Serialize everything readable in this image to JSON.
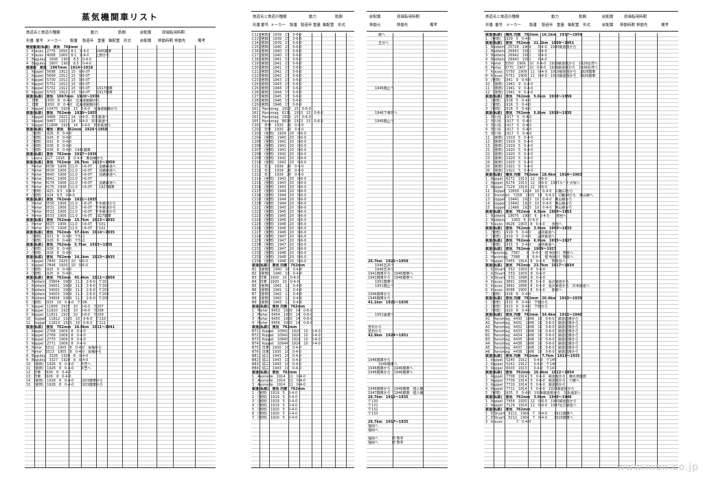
{
  "page_title": "蒸気機関車リスト",
  "sheet1_header": {
    "row1": [
      "鉄道名と鉄道の種類",
      "動力",
      "軌間",
      "前配属",
      "原価転用時期"
    ],
    "row2": [
      "形番",
      "番号",
      "メーカー",
      "製番",
      "製造年",
      "重量",
      "軸配置",
      "形式",
      "前配属",
      "移動時期",
      "移動先",
      "備考"
    ]
  },
  "sheet1_rows": [
    {
      "sec": true,
      "t": "軽便鉄道(私鉄)　蒸気　762mm"
    },
    {
      "t": "1　Krauss　2776　1893　8.1　0-4-0　　1945廃車"
    },
    {
      "t": "2　Krauss　4068　1900　8.1　0-4-0　　上野から"
    },
    {
      "t": "3　Baguley　1606　1903　8.5　0-4-0　　"
    },
    {
      "t": "4　Baguley　1607　1903　8.5　0-4-0　　"
    },
    {
      "sec": true,
      "t": "鉄道院　蒸気　1067mm　1914～1918"
    },
    {
      "t": "1　Koppel　5698　1912　15　0-6-0T　　"
    },
    {
      "t": "2　Koppel　5699　1912　15　0-6-0T　　"
    },
    {
      "t": "3　Koppel　5700　1912　15　0-6-0T　　"
    },
    {
      "t": "4　Koppel　5701　1912　15　0-6-0T　　"
    },
    {
      "t": "5　Koppel　5702　1912　15　0-6-0T　　1917廃車"
    },
    {
      "t": "6　Koppel　5703　1912　15　0-6-0T　　1917廃車"
    },
    {
      "sec": true,
      "t": "鉄道(私鉄)　蒸気　1067mm　1920～1978"
    },
    {
      "t": "1　日車　　1930　8　0-4-0　北海道製鋼から"
    },
    {
      "t": "2　日車　　1930　8　0-4-0　北海道製鋼から"
    },
    {
      "t": "3　Koppel　10470　1924　13　0-6-0　北海道製鋼から"
    },
    {
      "sec": true,
      "t": "鉄道(私鉄)　蒸気　762mm　1920～1955"
    },
    {
      "t": "1　Koppel　9466　1921　14　0-4-0　日本鉄道へ"
    },
    {
      "t": "2　Koppel　9467　1921　14　0-4-0　日本鉄道へ"
    },
    {
      "t": "3　Koppel　11808　1925　14　0-4-0　日本鉄道へ"
    },
    {
      "sec": true,
      "t": "鉄道(私鉄)　電気・蒸気　762mm　1926～1958"
    },
    {
      "t": "1　(宮田)　1926　8　0-4-0"
    },
    {
      "t": "2　(宮田)　1926　8　0-4-0"
    },
    {
      "t": "3　(宮田)　1932　8　0-4-0"
    },
    {
      "t": "4　(宮田)　1936　8　0-4-0"
    },
    {
      "t": "5　(宮田)　1936　8　0-4-0　1941廃車"
    },
    {
      "sec": true,
      "t": "鉄道(私鉄)　蒸気　762mm　1917～1936"
    },
    {
      "t": "1　Lowca　227　1916　8　0-4-0　奥谷線から"
    },
    {
      "sec": true,
      "t": "鉄道(私鉄)　蒸気　762mm　28.7km　1913～1959"
    },
    {
      "t": "1　Porter　3638　1906　11.0　0-6-0T　　淡路鉄道へ"
    },
    {
      "t": "2　Porter　3639　1906　11.0　0-6-0T　　淡路鉄道へ"
    },
    {
      "t": "3　Porter　3640　1906　11.0　0-6-0T　　淡路鉄道へ"
    },
    {
      "t": "4　Porter　3641　1906　11.0　0-6-0T　　"
    },
    {
      "t": "5　Porter　4174　1908　11.0　0-6-0T　　淡路鉄道へ"
    },
    {
      "t": "6　Porter　4175　1908　11.0　0-6-0T　　1927廃車"
    },
    {
      "t": "7　(宮田)　1923　9.5　0-4-0"
    },
    {
      "t": "8　(宮田)　1924　9.5　0-4-0"
    },
    {
      "sec": true,
      "t": "鉄道(私鉄)　蒸気　762mm　1921～1935"
    },
    {
      "t": "1　Porter　3530　1906　11.0　0-6-0T　千手鉄道から"
    },
    {
      "t": "2　Porter　3531　1906　11.0　0-6-0T　千手鉄道から"
    },
    {
      "t": "3　Porter　3532　1906　11.0　0-6-0T　千手鉄道から"
    },
    {
      "t": "4　Porter　3533　1906　11.0　0-6-0T　1927廃車"
    },
    {
      "sec": true,
      "t": "鉄道(私鉄)　蒸気　762mm　15.7km　1913～1935"
    },
    {
      "t": "1　Porter　3637　1906　11.0　0-6-0T　ケ101"
    },
    {
      "t": "2　Porter　4171　1908　11.0　0-6-0T　ケ102"
    },
    {
      "sec": true,
      "t": "鉄道(私鉄)　蒸気　762mm　37.6km　1914～1935"
    },
    {
      "t": "1　(宮田)　1921　8　0-4-0　ケ511"
    },
    {
      "t": "2　(宮田)　1926　8　0-4-0　ケ512"
    },
    {
      "sec": true,
      "t": "鉄道(私鉄)　蒸気　762mm　5.7km　1913～1935"
    },
    {
      "t": "1　(宮田)　1928　8　0-4-0"
    },
    {
      "t": "2　(宮田)　1928　8　0-4-0"
    },
    {
      "sec": true,
      "t": "鉄道(私鉄)　蒸気　762mm　14.1km　1923～1935"
    },
    {
      "t": "1　Koppel　7845　1920　10　0-6-0"
    },
    {
      "t": "2　Koppel　7846　1920　10　0-6-0"
    },
    {
      "t": "3　(宮田)　1925　9　0-4-0"
    },
    {
      "t": "4　(宮田)　1925　9　0-4-0"
    },
    {
      "sec": true,
      "t": "鉄道(私鉄)　蒸気　762mm　45.4km　1911～1959"
    },
    {
      "t": "1　Baldwin　33804　1909　11.2　2-6-0　ケ201"
    },
    {
      "t": "2　Baldwin　34001　1909　11.2　2-6-0　ケ202"
    },
    {
      "t": "3　Baldwin　34002　1909　11.2　2-6-0　ケ203"
    },
    {
      "t": "4　Baldwin　34003　1909　11.2　2-6-0　ケ204"
    },
    {
      "t": "5　Baldwin　34004　1909　11.2　2-6-0　ケ205"
    },
    {
      "t": "6　(宮田)　1925　10　0-4-0　ケ206"
    },
    {
      "t": "7　Koppel　11809　1925　10　0-6-0　ケ207"
    },
    {
      "t": "8　Koppel　11810　1925　10　0-6-0　ケ208"
    },
    {
      "t": "9　Koppel　11811　1925　10　0-6-0　ケ209"
    },
    {
      "t": "10　Koppel　11812　1925　10　0-6-0　ケ210"
    },
    {
      "t": "11　Koppel　11813　1925　10　0-6-0　ケ211"
    },
    {
      "sec": true,
      "t": "鉄道(私鉄)　蒸気　762mm　16.0km　1911～1941"
    },
    {
      "t": "1　Koppel　2768　1909　8　0-4-0"
    },
    {
      "t": "2　Koppel　2769　1909　8　0-4-0"
    },
    {
      "t": "3　Koppel　2770　1909　8　0-4-0"
    },
    {
      "t": "5　Koppel　2771　1909　8　0-4-0"
    },
    {
      "t": "6　Porter　3312　1905　8　0-4-0　青梅から"
    },
    {
      "t": "7　Porter　3313　1905　8　0-4-0　青梅から"
    },
    {
      "t": "8　Baguley　3326　1920　8　0-4-0"
    },
    {
      "t": "9　Baguley　3327　1920　8　0-4-0"
    },
    {
      "t": "10　(宮田)　1926　8　0-4-0　　井笠へ"
    },
    {
      "t": "11　(宮田)　1926　8　0-4-0　　井笠へ"
    },
    {
      "t": "12　日車　1926　8　0-4-0"
    },
    {
      "t": "13　日車　1926　8　0-4-0"
    },
    {
      "t": "14　(宮田)　1928　8　0-4-0　　1933廃車から"
    },
    {
      "t": "15　(宮田)　1928　8　0-4-0　　1933廃車から"
    }
  ],
  "sheet2_header": {
    "row1": [
      "鉄道名と鉄道の種類",
      "動力",
      "軌間"
    ],
    "row2": [
      "形番",
      "番号",
      "メーカー",
      "製番",
      "製造年",
      "重量",
      "軸配置",
      "形式"
    ]
  },
  "sheet2_rows": [
    {
      "t": "C12 (宮田)　1939　15　0-6-0"
    },
    {
      "t": "C13 (宮田)　1939　15　0-6-0"
    },
    {
      "t": "C14 (宮田)　1939　15　0-6-0"
    },
    {
      "t": "C15 (宮田)　1940　15　0-6-0"
    },
    {
      "t": "C16 (宮田)　1940　15　0-6-0"
    },
    {
      "t": "C17 (宮田)　1940　15　0-6-0"
    },
    {
      "t": "C18 (宮田)　1941　15　0-6-0"
    },
    {
      "t": "C19 (宮田)　1941　15　0-6-0"
    },
    {
      "t": "C20 (宮田)　1941　15　0-6-0"
    },
    {
      "t": "C21 (宮田)　1942　15　0-6-0"
    },
    {
      "t": "C22 (宮田)　1942　15　0-6-0"
    },
    {
      "t": "C23 (宮田)　1943　15　0-6-0"
    },
    {
      "t": "C24 (宮田)　1943　15　0-6-0"
    },
    {
      "t": "C25 (宮田)　1944　15　0-6-0"
    },
    {
      "t": "C26 (宮田)　1944　15　0-6-0"
    },
    {
      "t": "C27 (宮田)　1945　15　0-6-0"
    },
    {
      "t": "C28 (宮田)　1946　15　0-6-0"
    },
    {
      "t": "C29 (宮田)　1946　15　0-6-0"
    },
    {
      "t": "161　Hanomag　1910　15　0-6-0"
    },
    {
      "t": "162　Hanomag　6131　1913　15　0-6-0"
    },
    {
      "t": "163　Hanomag　1913　15　0-6-0"
    },
    {
      "t": "165　Hanomag　6634　1913　15　0-6-0"
    },
    {
      "t": "C201　日車　1930　20　0-6-0"
    },
    {
      "t": "C202　日車　1930　20　0-6-0"
    },
    {
      "t": "C203　(宮田)　1934　20　0-6-0"
    },
    {
      "t": "C204　(宮田)　1940　20　0-6-0"
    },
    {
      "t": "C205　(宮田)　1941　20　0-6-0"
    },
    {
      "t": "C206　(宮田)　1941　20　0-6-0"
    },
    {
      "t": "C207　(宮田)　1941　20　0-6-0"
    },
    {
      "t": "C208　(宮田)　1942　20　0-6-0"
    },
    {
      "t": "C209　(宮田)　1942　20　0-6-0"
    },
    {
      "t": "C210　(宮田)　1942　20　0-6-0"
    },
    {
      "t": "C211　日立　1939　20　0-6-0"
    },
    {
      "t": "C212　日立　1939　20　0-6-0"
    },
    {
      "t": "C213　日立　1939　20　0-6-0"
    },
    {
      "t": "C214　(宮田)　1943　20　0-6-0"
    },
    {
      "t": "C215　(宮田)　1943　20　0-6-0"
    },
    {
      "t": "C216　(宮田)　1943　20　0-6-0"
    },
    {
      "t": "C217　(宮田)　1944　20　0-6-0"
    },
    {
      "t": "C218　(宮田)　1944　20　0-6-0"
    },
    {
      "t": "C219　(宮田)　1944　20　0-6-0"
    },
    {
      "t": "C220　(宮田)　1944　20　0-6-0"
    },
    {
      "t": "C221　(宮田)　1945　20　0-6-0"
    },
    {
      "t": "C222　(宮田)　1945　20　0-6-0"
    },
    {
      "t": "C223　(宮田)　1945　20　0-6-0"
    },
    {
      "t": "C224　(宮田)　1946　20　0-6-0"
    },
    {
      "t": "C225　(宮田)　1946　20　0-6-0"
    },
    {
      "t": "C226　(宮田)　1946　20　0-6-0"
    },
    {
      "t": "C227　(宮田)　1946　20　0-6-0"
    },
    {
      "t": "C228　(宮田)　1947　20　0-6-0"
    },
    {
      "t": "C229　(宮田)　1947　20　0-6-0"
    },
    {
      "t": "C230　(宮田)　1947　20　0-6-0"
    },
    {
      "t": "C231　(宮田)　1947　20　0-6-0"
    },
    {
      "t": "C232　(宮田)　1948　20　0-6-0"
    },
    {
      "t": "C233　(宮田)　1948　20　0-6-0"
    },
    {
      "t": "C234　(宮田)　1948　20　0-6-0"
    },
    {
      "sec": true,
      "t": "鉄道(私鉄)　蒸気 内燃　762mm"
    },
    {
      "t": "B1　(宮田)　1940　10　0-4-0"
    },
    {
      "t": "B2　(宮田)　1940　10　0-4-0"
    },
    {
      "t": "B3　日車　1920　10　0-4-0"
    },
    {
      "t": "B4　日車　1920　10　0-4-0"
    },
    {
      "t": "B5　(宮田)　1941　12　0-4-0"
    },
    {
      "t": "B6　(宮田)　1941　12　0-4-0"
    },
    {
      "t": "B7　(宮田)　1942　12　0-4-0"
    },
    {
      "t": "B8　(宮田)　1942　12　0-4-0"
    },
    {
      "t": "B9　(宮田)　1943　12　0-4-0"
    },
    {
      "sec": true,
      "t": "鉄道(私鉄)　蒸気 内燃　762mm"
    },
    {
      "t": "1　Porter　6453　1920　14　0-6-0"
    },
    {
      "t": "2　Porter　6454　1920　14　0-6-0"
    },
    {
      "t": "3　Porter　6455　1920　14　0-6-0"
    },
    {
      "t": "4　Porter　6456　1920　14　0-6-0"
    },
    {
      "sec": true,
      "t": "鉄道(私鉄)　蒸気　762mm"
    },
    {
      "t": "B71　Koppel　10941　1924　10　0-4-0"
    },
    {
      "t": "B72　Koppel　10942　1924　10　0-4-0"
    },
    {
      "t": "B73　Koppel　10943　1924　10　0-4-0"
    },
    {
      "t": "B74　Koppel　10944　1924　10　0-4-0"
    },
    {
      "t": "B75　日車　1930　10　0-4-0"
    },
    {
      "t": "B76　日車　1930　10　0-4-0"
    },
    {
      "t": "B81　協三　1943　10　0-4-0"
    },
    {
      "t": "B82　協三　1943　10　0-4-0"
    },
    {
      "t": "B83　協三　1943　10　0-4-0"
    },
    {
      "t": "B84　協三　1943　10　0-4-0"
    },
    {
      "sec": true,
      "t": "鉄道(私鉄)　蒸気　762mm"
    },
    {
      "t": "1　Avonside　1914　11　0-4-0"
    },
    {
      "t": "2　Avonside　1914　11　0-4-0"
    },
    {
      "t": "3　Avonside　1914　11　0-4-0"
    },
    {
      "sec": true,
      "t": "鉄道(私鉄)　蒸気 内燃　762mm"
    },
    {
      "t": "1　(宮田)　1919　5　0-4-0"
    },
    {
      "t": "2　(宮田)　1919　5　0-4-0"
    },
    {
      "t": "3　(宮田)　1919　5　0-4-0"
    },
    {
      "t": "4　(宮田)　1919　5　0-4-0"
    },
    {
      "t": "5　(宮田)　1920　5　0-4-0"
    },
    {
      "t": "6　(宮田)　1920　5　0-4-0"
    },
    {
      "t": "7　(宮田)　1920　5　0-4-0"
    }
  ],
  "sheet3_header": {
    "row1": [
      "前配属",
      "原価転用時期"
    ],
    "row2": [
      "移動元",
      "移動先",
      "備考"
    ]
  },
  "sheet3_rows": [
    {
      "t": "　　　越へ"
    },
    {
      "t": "　　　"
    },
    {
      "t": "　　　五分へ"
    },
    {
      "t": ""
    },
    {
      "t": ""
    },
    {
      "t": ""
    },
    {
      "t": ""
    },
    {
      "t": ""
    },
    {
      "t": ""
    },
    {
      "t": ""
    },
    {
      "t": ""
    },
    {
      "t": ""
    },
    {
      "t": ""
    },
    {
      "t": "　　1946廃止へ"
    },
    {
      "t": ""
    },
    {
      "t": ""
    },
    {
      "t": ""
    },
    {
      "t": ""
    },
    {
      "t": ""
    },
    {
      "t": "　　1946下津井へ"
    },
    {
      "t": ""
    },
    {
      "t": "　　1946廃止へ"
    },
    {
      "t": ""
    },
    {
      "t": ""
    },
    {
      "t": ""
    },
    {
      "t": ""
    },
    {
      "t": ""
    },
    {
      "t": ""
    },
    {
      "t": ""
    },
    {
      "t": ""
    },
    {
      "t": ""
    },
    {
      "t": ""
    },
    {
      "t": ""
    },
    {
      "t": ""
    },
    {
      "t": ""
    },
    {
      "t": ""
    },
    {
      "t": ""
    },
    {
      "t": ""
    },
    {
      "t": ""
    },
    {
      "t": ""
    },
    {
      "t": ""
    },
    {
      "t": ""
    },
    {
      "t": ""
    },
    {
      "t": ""
    },
    {
      "t": ""
    },
    {
      "t": ""
    },
    {
      "t": ""
    },
    {
      "t": ""
    },
    {
      "t": ""
    },
    {
      "t": ""
    },
    {
      "t": ""
    },
    {
      "t": ""
    },
    {
      "t": ""
    },
    {
      "t": ""
    },
    {
      "t": ""
    },
    {
      "sec": true,
      "t": "26.7km　1921～1959"
    },
    {
      "t": "　　1946五井へ"
    },
    {
      "t": "　　1946五井へ"
    },
    {
      "t": "1941廃車から　1946廃車へ"
    },
    {
      "t": "1941廃車から　1946廃車へ"
    },
    {
      "t": "　　1951廃車へ"
    },
    {
      "t": "　　1951廃止へ"
    },
    {
      "t": ""
    },
    {
      "t": "1946廃車から"
    },
    {
      "t": "1946廃車から"
    },
    {
      "sec": true,
      "t": "41.1km　1921～1936"
    },
    {
      "t": ""
    },
    {
      "t": ""
    },
    {
      "t": "　　1951譲渡へ"
    },
    {
      "t": ""
    },
    {
      "t": ""
    },
    {
      "t": "釜石から"
    },
    {
      "t": "釜石から"
    },
    {
      "sec": true,
      "t": "42.9km　1924～1951"
    },
    {
      "t": ""
    },
    {
      "t": ""
    },
    {
      "t": ""
    },
    {
      "t": ""
    },
    {
      "t": ""
    },
    {
      "t": "1946廃車から"
    },
    {
      "t": "　　　1946廃車へ"
    },
    {
      "t": "1946廃車から　1946廃車へ"
    },
    {
      "t": "1946廃車から　1946廃車へ"
    },
    {
      "t": ""
    },
    {
      "t": ""
    },
    {
      "t": ""
    },
    {
      "t": "1946廃車から　1946廃車　借入機"
    },
    {
      "t": "1947廃車から　1946廃車　借入機"
    },
    {
      "sec": true,
      "t": "26.7km　1912～1935"
    },
    {
      "t": "ケ130"
    },
    {
      "t": "ケ131"
    },
    {
      "t": "ケ132"
    },
    {
      "t": "ケ133"
    },
    {
      "t": ""
    },
    {
      "sec": true,
      "t": "26.7km　1917～1935"
    },
    {
      "t": "福岡へ"
    },
    {
      "t": "福岡へ"
    },
    {
      "t": ""
    },
    {
      "t": "福岡へ　　　　旧 熊本"
    },
    {
      "t": "福岡へ　　　　旧 熊本"
    }
  ],
  "sheet4_header": {
    "row1": [
      "鉄道名と鉄道の種類",
      "動力",
      "軌間",
      "前配属",
      "原価転用時期"
    ],
    "row2": [
      "形番",
      "番号",
      "メーカー",
      "製番",
      "製造年",
      "重量",
      "軸配置",
      "形式",
      "前配属",
      "移動時期",
      "移動先",
      "備考"
    ]
  },
  "sheet4_rows": [
    {
      "sec": true,
      "t": "鉄道(私鉄)　電気 内燃　762mm　16.1km　1917～1959"
    },
    {
      "t": "1　(宮田)　1929　5　0-4-0"
    },
    {
      "sec": true,
      "t": "鉄道(私鉄)　蒸気　762mm　21.1km　1909～1951"
    },
    {
      "t": "1　Baldwin　25728　1909　　0-4-0　1940鉄道院から"
    },
    {
      "t": "2　Baldwin　26941　1911　　0-4-0"
    },
    {
      "t": "3　Baldwin　26942　1911　　0-4-0"
    },
    {
      "t": "4　Baldwin　26943　1911　　0-4-0"
    },
    {
      "t": "5　Porter　3350　1906　10　0-4-0　1919鉄道院から　1926台湾へ"
    },
    {
      "t": "6　Porter　3770　1907　10　0-4-0　1919鉄道院から　1926台湾へ"
    },
    {
      "t": "7　Krauss　5750　1909　11　0-4-0　1919鉄道院から　1926廃車"
    },
    {
      "t": "8　Krauss　5751　1909　11　0-4-0　1919鉄道院から　1926廃車"
    },
    {
      "t": "9　(宮田)　1941　9　0-4-0"
    },
    {
      "t": "10　(宮田)　1941　9　0-4-0"
    },
    {
      "t": "11　(宮田)　1941　9　0-4-0"
    },
    {
      "t": "12　(宮田)　1941　9　0-4-0"
    },
    {
      "sec": true,
      "t": "鉄道(私鉄)　蒸気　762mm　5.6km　1918～1959"
    },
    {
      "t": "1　(宮田)　1918　5　0-4-0"
    },
    {
      "t": "2　(宮田)　1918　5　0-4-0"
    },
    {
      "t": "3　(宮田)　1918　5　0-4-0"
    },
    {
      "sec": true,
      "t": "鉄道(私鉄)　蒸気　762mm　5.8km　1918～1935"
    },
    {
      "t": "1　石川島　1917　5　0-4-0"
    },
    {
      "t": "2　石川島　1917　5　0-4-0"
    },
    {
      "t": "3　石川島　1917　5　0-4-0"
    },
    {
      "t": "4　石川島　1917　5　0-4-0"
    },
    {
      "t": "5　石川島　1917　5　0-4-0"
    },
    {
      "t": "11　(宮田)　1919　5　0-4-0"
    },
    {
      "t": "12　(宮田)　1919　5　0-4-0"
    },
    {
      "t": "13　(宮田)　1919　5　0-4-0"
    },
    {
      "t": "21　(宮田)　1920　5　0-4-0"
    },
    {
      "t": "22　(宮田)　1920　5　0-4-0"
    },
    {
      "t": "23　(宮田)　1920　5　0-4-0"
    },
    {
      "t": "24　(宮田)　1920　5　0-4-0"
    },
    {
      "t": "25　(宮田)　1921　5　0-4-0"
    },
    {
      "t": "26　(宮田)　1921　5　0-4-0"
    },
    {
      "sec": true,
      "t": "鉄道(私鉄)　電気 内燃　762mm　18.4km　1914～1963"
    },
    {
      "t": "1　Koppel　6272　1913　12　0-6-0"
    },
    {
      "t": "2　Koppel　6274　1913　12　0-6-0　1947ルート大塚へ"
    },
    {
      "t": "3　Koppel　7129　1914　12　0-6-0"
    },
    {
      "t": "11　Koppel　10656　1924　10　0-4-0　三輪13から"
    },
    {
      "t": "12　Orenstein　7258　1915　10　0-4-0　三輪14から　奥山線へ"
    },
    {
      "t": "13　Koppel　10441　1923　10　0-4-0　奥山線から"
    },
    {
      "t": "14　Koppel　10442　1923　10　0-4-0　奥山線から"
    },
    {
      "t": "15　Koppel　11466　1925　10　0-4-0　奥山線から"
    },
    {
      "sec": true,
      "t": "鉄道(私鉄)　蒸気　762mm　4.5km　1909～1953"
    },
    {
      "t": "1　Baldwin　18075　1900　6　0-4-0　　京極へ"
    },
    {
      "t": "2　Baldwin　　1900　6　0-4-0"
    },
    {
      "t": "3　Krauss　4626　1903　8　0-4-0　　京極へ"
    },
    {
      "sec": true,
      "t": "鉄道(私鉄)　蒸気　762mm　3.9km　1909～1933"
    },
    {
      "t": "1　(宮田)　1919　5　0-4-0　　温井鉄道へ"
    },
    {
      "t": "2　(宮田)　1919　5　0-4-0　　温井鉄道へ"
    },
    {
      "sec": true,
      "t": "鉄道(私鉄)　蒸気　762mm　6.9km　1915～1927"
    },
    {
      "t": "1　(宮田)　1915　5　0-4-0　　温井鉄道へ"
    },
    {
      "sec": true,
      "t": "鉄道(私鉄)　蒸気　762mm　1909～1927"
    },
    {
      "t": "1　Hanomag　7387　　8　0-4-0　借 明見川　熊本へ"
    },
    {
      "t": "2　Hanomag　7388　　8　0-4-0　借 明見川　熊本へ"
    },
    {
      "t": "3　Koppel　7455　1914　8　0-4-0　　熊本島へ"
    },
    {
      "sec": true,
      "t": "鉄道(私鉄)　蒸気　762mm　23.7km　1917～1934"
    },
    {
      "t": "1　K.Stuart　552　1903　8　0-4-0"
    },
    {
      "t": "2　K.Stuart　553　1903　8　0-4-0"
    },
    {
      "t": "3　K.Stuart　531　1896　8　0-4-0"
    },
    {
      "t": "4　Krauss　3891　1898　8　0-4-0　長沢鉄道から"
    },
    {
      "t": "5　Krauss　3892　1898　8　0-4-0　長沢鉄道から　日米鉄道へ"
    },
    {
      "t": "6　Krauss　4098　1900　8　0-4-0　　郡家へ"
    },
    {
      "t": "7　(宮田)　1918　6　0-4-0"
    },
    {
      "sec": true,
      "t": "鉄道(私鉄)　蒸気 内燃　762mm　26.4km　1913～1935"
    },
    {
      "t": "1　(宮田)　1913　6　0-4-0　下野から"
    },
    {
      "t": "2　(宮田)　1913　6　0-4-0　下野から"
    },
    {
      "t": "3　(宮田)　1920　6　0-4-0"
    },
    {
      "sec": true,
      "t": "鉄道(私鉄)　蒸気 内燃　762mm　34.4km　1911～1940"
    },
    {
      "t": "A1　Hanomag　4430　1906　10　0-6-0　鉄道連隊から"
    },
    {
      "t": "A2　Hanomag　4431　1906　10　0-6-0　鉄道連隊から"
    },
    {
      "t": "A3　Hanomag　4432　1906　10　0-6-0　鉄道連隊から"
    },
    {
      "t": "B1　Hanomag　4433　1906　10　0-6-0　鉄道連隊から"
    },
    {
      "t": "B2　Hanomag　4434　1906　10　0-6-0　鉄道連隊から"
    },
    {
      "t": "B3　Hanomag　4435　1906　10　0-6-0　鉄道連隊から"
    },
    {
      "t": "A4　Hanomag　4436　1906　10　0-6-0　鉄道連隊から"
    },
    {
      "t": "A5　Hanomag　4437　1906　10　0-6-0　鉄道連隊から"
    },
    {
      "t": "A6　Hanomag　4438　1906　10　0-6-0　鉄道連隊から"
    },
    {
      "sec": true,
      "t": "鉄道(私鉄)　蒸気 内燃　762mm　7.7km　1913～1935"
    },
    {
      "t": "1　Koppel　5240　1912　　0-4-0　ケ145"
    },
    {
      "t": "2　Koppel　5241　1912　　0-4-0　ケ146"
    },
    {
      "t": "3　Koppel　6003　1913　　0-4-0　ケ147"
    },
    {
      "sec": true,
      "t": "鉄道(私鉄)　蒸気　762mm　16.4km　1912～1954"
    },
    {
      "t": "1　Koppel　7708　1914　5　0-6-0　鉄道院から　陳大漁業技"
    },
    {
      "t": "2　Koppel　7709　1914　5　0-6-0　鉄道院から　十勝へ"
    },
    {
      "t": "3　Koppel　7710　1914　5　0-6-0　鉄道院から"
    },
    {
      "t": "4　Koppel　7711　1914　5　0-6-0　1924鉄道院から"
    },
    {
      "t": "5　(宮田)　1925　5　0-4-0　1924鉄道院から　久永温泉へ"
    },
    {
      "sec": true,
      "t": "鉄道(私鉄)　蒸気　762mm　3.9km　1940～1946"
    },
    {
      "t": "1　Koppel　7454　1920　12　0-6-0　1940鉄道院から"
    },
    {
      "t": "2　Koppel　7129　1914　12　0-6-0　1947近江鉄道へ"
    },
    {
      "sec": true,
      "t": "鉄道(私鉄)　蒸気　762mm"
    },
    {
      "t": "1　E.Stuart　5211　1904　7　0-4-0　　1911廃車へ"
    },
    {
      "t": "2　E.Stuart　5212　1904　7　0-4-0　　1916廃車へ"
    },
    {
      "t": "3　Krauss　　　　7　0-4-0"
    }
  ],
  "watermark": "www.mon.co.jp"
}
